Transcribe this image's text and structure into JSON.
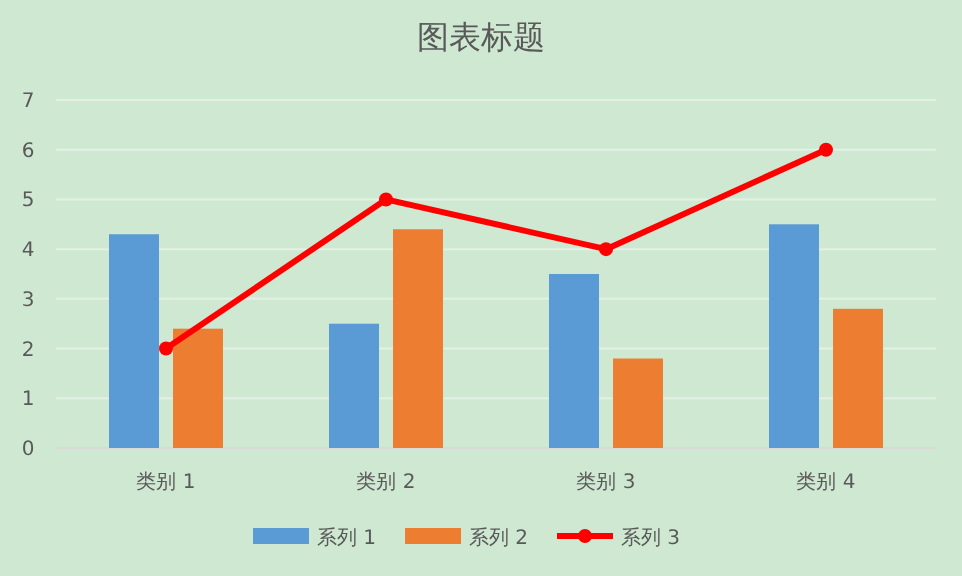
{
  "chart_data": {
    "type": "bar",
    "title": "图表标题",
    "categories": [
      "类别 1",
      "类别 2",
      "类别 3",
      "类别 4"
    ],
    "series": [
      {
        "name": "系列 1",
        "color": "#5b9bd5",
        "values": [
          4.3,
          2.5,
          3.5,
          4.5
        ]
      },
      {
        "name": "系列 2",
        "color": "#ed7d31",
        "values": [
          2.4,
          4.4,
          1.8,
          2.8
        ]
      },
      {
        "name": "系列 3",
        "color": "#ff0000",
        "type": "line",
        "marker": "circle",
        "values": [
          2,
          5,
          4,
          6
        ]
      }
    ],
    "ylim": [
      0,
      7
    ],
    "yticks": [
      0,
      1,
      2,
      3,
      4,
      5,
      6,
      7
    ],
    "grid": "y",
    "legend": "bottom"
  }
}
